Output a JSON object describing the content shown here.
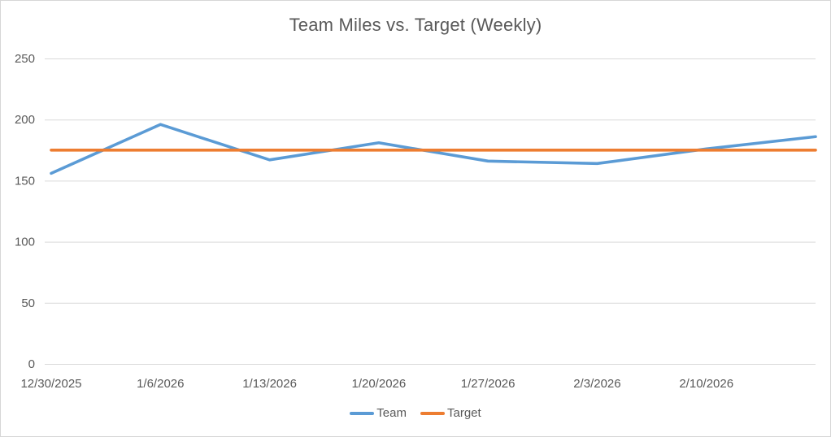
{
  "chart_data": {
    "type": "line",
    "title": "Team Miles vs. Target (Weekly)",
    "categories": [
      "12/30/2025",
      "1/6/2026",
      "1/13/2026",
      "1/20/2026",
      "1/27/2026",
      "2/3/2026",
      "2/10/2026",
      ""
    ],
    "series": [
      {
        "name": "Team",
        "color": "#5B9BD5",
        "values": [
          156,
          196,
          167,
          181,
          166,
          164,
          176,
          186
        ]
      },
      {
        "name": "Target",
        "color": "#ED7D31",
        "values": [
          175,
          175,
          175,
          175,
          175,
          175,
          175,
          175
        ]
      }
    ],
    "xlabel": "",
    "ylabel": "",
    "y_ticks": [
      0,
      50,
      100,
      150,
      200,
      250
    ],
    "ylim": [
      0,
      250
    ],
    "grid": true,
    "legend_position": "bottom"
  },
  "colors": {
    "grid_line": "#D9D9D9",
    "axis_text": "#595959",
    "title_text": "#595959",
    "frame_border": "#D6D6D6",
    "background": "#FFFFFF"
  }
}
